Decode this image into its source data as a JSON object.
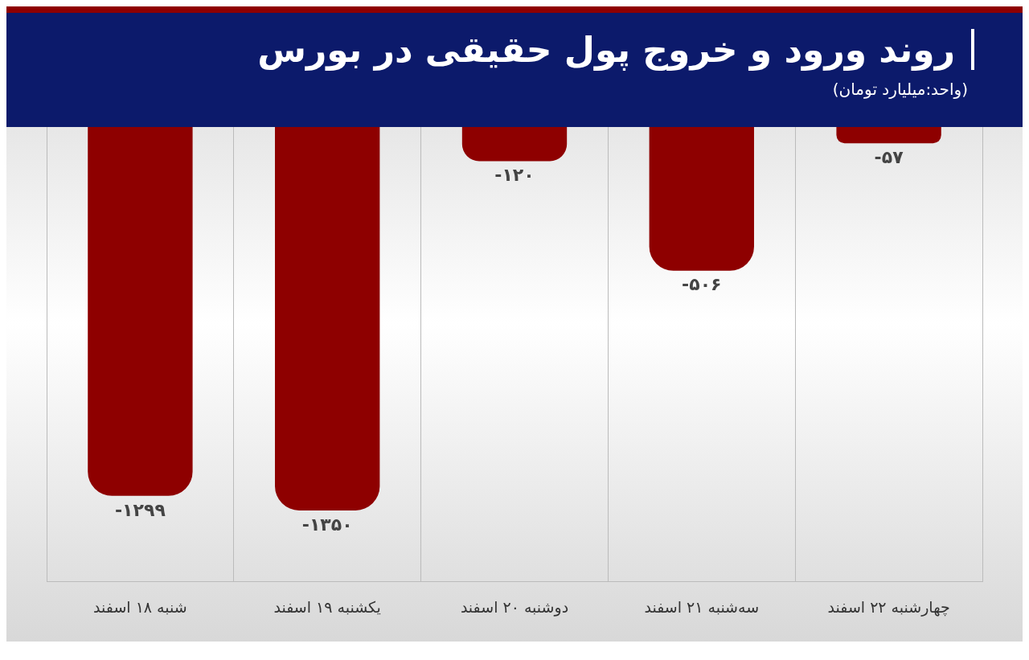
{
  "chart_data": {
    "type": "bar",
    "title": "روند ورود و خروج پول حقیقی در بورس",
    "subtitle": "(واحد:میلیارد تومان)",
    "categories": [
      "شنبه ۱۸ اسفند",
      "یکشنبه ۱۹ اسفند",
      "دوشنبه ۲۰ اسفند",
      "سه‌شنبه ۲۱ اسفند",
      "چهارشنبه ۲۲ اسفند"
    ],
    "values": [
      -1299,
      -1350,
      -120,
      -506,
      -57
    ],
    "value_labels": [
      "-۱۲۹۹",
      "-۱۳۵۰",
      "-۱۲۰",
      "-۵۰۶",
      "-۵۷"
    ],
    "color": "#8e0000",
    "ylim": [
      -1600,
      0
    ],
    "tick_labels": "x",
    "grid": "x"
  }
}
